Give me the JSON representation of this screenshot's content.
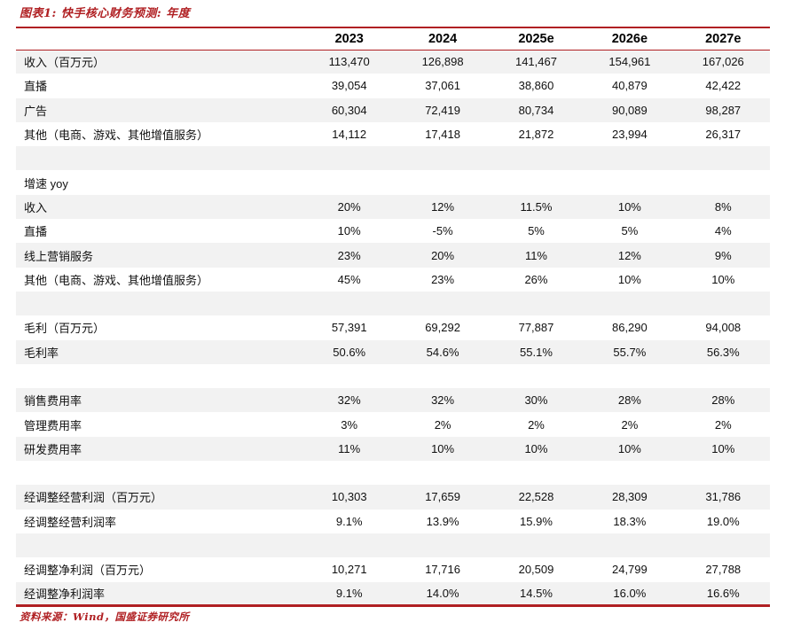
{
  "figure": {
    "title": "图表1: 快手核心财务预测: 年度",
    "source": "资料来源：Wind，国盛证券研究所"
  },
  "colors": {
    "accent_red": "#b02023",
    "stripe_gray": "#f2f2f2"
  },
  "chart_data": {
    "type": "table",
    "title": "图表1: 快手核心财务预测: 年度",
    "columns": [
      "",
      "2023",
      "2024",
      "2025e",
      "2026e",
      "2027e"
    ],
    "rows": [
      {
        "label": "收入（百万元）",
        "values": [
          "113,470",
          "126,898",
          "141,467",
          "154,961",
          "167,026"
        ]
      },
      {
        "label": "直播",
        "values": [
          "39,054",
          "37,061",
          "38,860",
          "40,879",
          "42,422"
        ]
      },
      {
        "label": "广告",
        "values": [
          "60,304",
          "72,419",
          "80,734",
          "90,089",
          "98,287"
        ]
      },
      {
        "label": "其他（电商、游戏、其他增值服务）",
        "values": [
          "14,112",
          "17,418",
          "21,872",
          "23,994",
          "26,317"
        ]
      },
      {
        "label": "",
        "values": [
          "",
          "",
          "",
          "",
          ""
        ]
      },
      {
        "label": "增速 yoy",
        "values": [
          "",
          "",
          "",
          "",
          ""
        ]
      },
      {
        "label": "收入",
        "values": [
          "20%",
          "12%",
          "11.5%",
          "10%",
          "8%"
        ]
      },
      {
        "label": "直播",
        "values": [
          "10%",
          "-5%",
          "5%",
          "5%",
          "4%"
        ]
      },
      {
        "label": "线上营销服务",
        "values": [
          "23%",
          "20%",
          "11%",
          "12%",
          "9%"
        ]
      },
      {
        "label": "其他（电商、游戏、其他增值服务）",
        "values": [
          "45%",
          "23%",
          "26%",
          "10%",
          "10%"
        ]
      },
      {
        "label": "",
        "values": [
          "",
          "",
          "",
          "",
          ""
        ]
      },
      {
        "label": "毛利（百万元）",
        "values": [
          "57,391",
          "69,292",
          "77,887",
          "86,290",
          "94,008"
        ]
      },
      {
        "label": "毛利率",
        "values": [
          "50.6%",
          "54.6%",
          "55.1%",
          "55.7%",
          "56.3%"
        ]
      },
      {
        "label": "",
        "values": [
          "",
          "",
          "",
          "",
          ""
        ]
      },
      {
        "label": "销售费用率",
        "values": [
          "32%",
          "32%",
          "30%",
          "28%",
          "28%"
        ]
      },
      {
        "label": "管理费用率",
        "values": [
          "3%",
          "2%",
          "2%",
          "2%",
          "2%"
        ]
      },
      {
        "label": "研发费用率",
        "values": [
          "11%",
          "10%",
          "10%",
          "10%",
          "10%"
        ]
      },
      {
        "label": "",
        "values": [
          "",
          "",
          "",
          "",
          ""
        ]
      },
      {
        "label": "经调整经营利润（百万元）",
        "values": [
          "10,303",
          "17,659",
          "22,528",
          "28,309",
          "31,786"
        ]
      },
      {
        "label": "经调整经营利润率",
        "values": [
          "9.1%",
          "13.9%",
          "15.9%",
          "18.3%",
          "19.0%"
        ]
      },
      {
        "label": "",
        "values": [
          "",
          "",
          "",
          "",
          ""
        ]
      },
      {
        "label": "经调整净利润（百万元）",
        "values": [
          "10,271",
          "17,716",
          "20,509",
          "24,799",
          "27,788"
        ]
      },
      {
        "label": "经调整净利润率",
        "values": [
          "9.1%",
          "14.0%",
          "14.5%",
          "16.0%",
          "16.6%"
        ]
      }
    ],
    "source": "资料来源：Wind，国盛证券研究所",
    "layout": {
      "stripe_start": "first-row-gray",
      "value_alignment": "center",
      "label_column_width_pct": 38
    }
  }
}
